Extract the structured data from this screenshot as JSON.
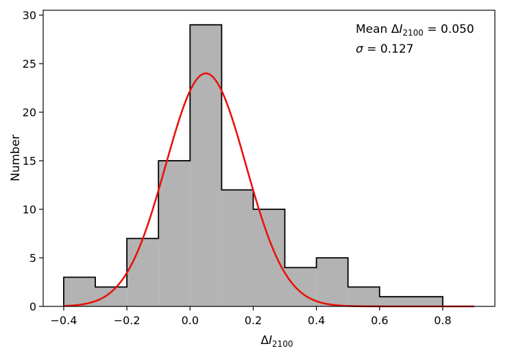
{
  "chart_data": {
    "type": "bar",
    "subtype": "histogram",
    "bin_edges": [
      -0.4,
      -0.3,
      -0.2,
      -0.1,
      0.0,
      0.1,
      0.2,
      0.3,
      0.4,
      0.5,
      0.6,
      0.7,
      0.8
    ],
    "counts": [
      3,
      2,
      7,
      15,
      29,
      12,
      10,
      4,
      5,
      2,
      1,
      1
    ],
    "fit_curve": {
      "type": "gaussian",
      "mean": 0.05,
      "sigma": 0.127,
      "peak": 24,
      "x_range": [
        -0.4,
        0.9
      ],
      "color": "#e8120c"
    },
    "bar_fill": "#b3b3b3",
    "bar_edge": "#000000",
    "xlabel": {
      "prefix": "Δ",
      "var": "I",
      "sub": "2100"
    },
    "ylabel": "Number",
    "xlim": [
      -0.465,
      0.965
    ],
    "ylim": [
      0,
      30.5
    ],
    "xticks": [
      -0.4,
      -0.2,
      0.0,
      0.2,
      0.4,
      0.6,
      0.8
    ],
    "xtick_labels": [
      "−0.4",
      "−0.2",
      "0.0",
      "0.2",
      "0.4",
      "0.6",
      "0.8"
    ],
    "yticks": [
      0,
      5,
      10,
      15,
      20,
      25,
      30
    ],
    "ytick_labels": [
      "0",
      "5",
      "10",
      "15",
      "20",
      "25",
      "30"
    ],
    "annotations": {
      "line1": {
        "prefix": "Mean Δ",
        "var": "I",
        "sub": "2100",
        "suffix": " = 0.050"
      },
      "line2": {
        "var": "σ",
        "suffix": " = 0.127"
      }
    },
    "grid": false,
    "legend": "none"
  }
}
